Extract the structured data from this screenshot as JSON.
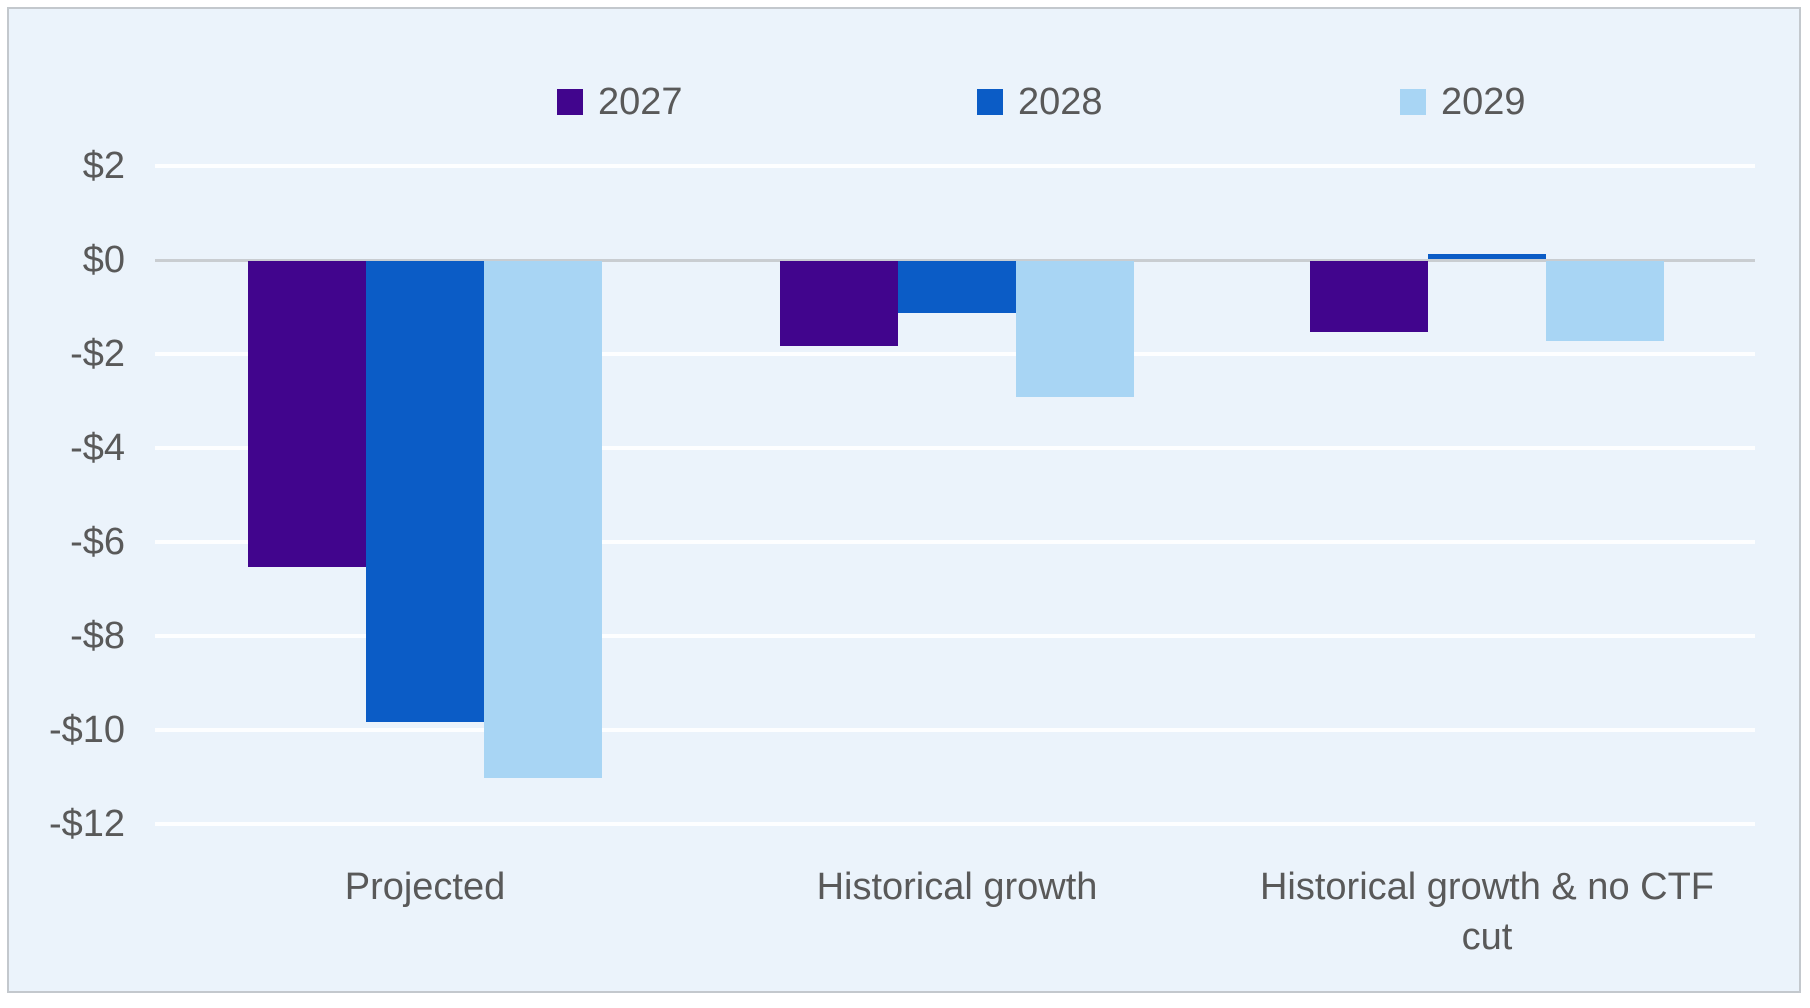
{
  "chart_data": {
    "type": "bar",
    "title": "",
    "categories": [
      "Projected",
      "Historical growth",
      "Historical growth & no CTF cut"
    ],
    "category_lines": [
      [
        "Projected"
      ],
      [
        "Historical growth"
      ],
      [
        "Historical growth & no CTF",
        "cut"
      ]
    ],
    "series": [
      {
        "name": "2027",
        "color": "#41058d",
        "values": [
          -6.5,
          -1.8,
          -1.5
        ]
      },
      {
        "name": "2028",
        "color": "#0b5cc6",
        "values": [
          -9.8,
          -1.1,
          0.1
        ]
      },
      {
        "name": "2029",
        "color": "#a8d5f4",
        "values": [
          -11.0,
          -2.9,
          -1.7
        ]
      }
    ],
    "y_axis": {
      "ticks": [
        {
          "label": "$2",
          "value": 2
        },
        {
          "label": "$0",
          "value": 0
        },
        {
          "label": "-$2",
          "value": -2
        },
        {
          "label": "-$4",
          "value": -4
        },
        {
          "label": "-$6",
          "value": -6
        },
        {
          "label": "-$8",
          "value": -8
        },
        {
          "label": "-$10",
          "value": -10
        },
        {
          "label": "-$12",
          "value": -12
        }
      ],
      "range": [
        -12,
        2
      ],
      "unit": "dollars (billions implied)"
    },
    "legend_position": "top",
    "grid": true,
    "colors": {
      "panel_background": "#ebf3fb",
      "panel_border": "#c3c8cd",
      "gridline": "#fdfeff",
      "zero_line": "#c9cdd1",
      "text": "#595959"
    }
  }
}
